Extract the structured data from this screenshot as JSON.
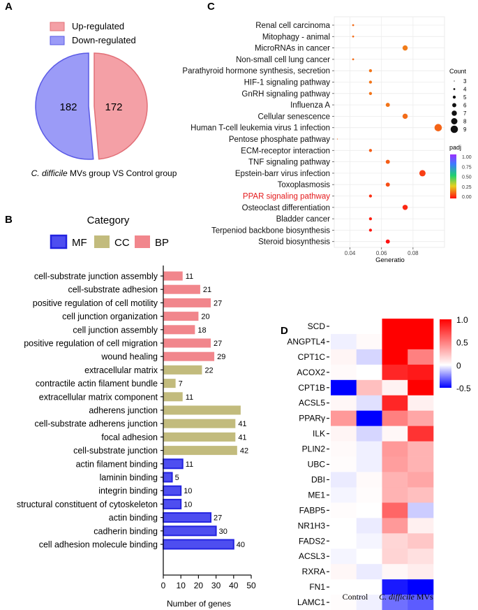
{
  "panel_labels": {
    "a": "A",
    "b": "B",
    "c": "C",
    "d": "D"
  },
  "colors": {
    "up": "#f4a0a6",
    "up_stroke": "#e26f77",
    "down": "#9b9bf7",
    "down_stroke": "#5a5ae6",
    "mf": "#4e4ef0",
    "cc": "#c2bb7d",
    "bp": "#f1868c"
  },
  "chart_data": [
    {
      "type": "pie",
      "panel": "A",
      "legend": [
        "Up-regulated",
        "Down-regulated"
      ],
      "slices": [
        {
          "label": "Up-regulated",
          "value": 172
        },
        {
          "label": "Down-regulated",
          "value": 182
        }
      ],
      "caption_italic": "C. difficile",
      "caption_rest": " MVs group VS Control group"
    },
    {
      "type": "bar",
      "orientation": "horizontal",
      "panel": "B",
      "legend_title": "Category",
      "legend": [
        "MF",
        "CC",
        "BP"
      ],
      "xlabel": "Number of genes",
      "xlim": [
        0,
        50
      ],
      "xticks": [
        "0",
        "10",
        "20",
        "30",
        "40",
        "50"
      ],
      "categories": [
        {
          "term": "cell-substrate junction assembly",
          "value": 11,
          "category": "BP",
          "label": "11"
        },
        {
          "term": "cell-substrate adhesion",
          "value": 21,
          "category": "BP",
          "label": "21"
        },
        {
          "term": "positive regulation of cell motility",
          "value": 27,
          "category": "BP",
          "label": "27"
        },
        {
          "term": "cell junction organization",
          "value": 20,
          "category": "BP",
          "label": "20"
        },
        {
          "term": "cell junction assembly",
          "value": 18,
          "category": "BP",
          "label": "18"
        },
        {
          "term": "positive regulation of cell migration",
          "value": 27,
          "category": "BP",
          "label": "27"
        },
        {
          "term": "wound healing",
          "value": 29,
          "category": "BP",
          "label": "29"
        },
        {
          "term": "extracellular matrix",
          "value": 22,
          "category": "CC",
          "label": "22"
        },
        {
          "term": "contractile actin filament bundle",
          "value": 7,
          "category": "CC",
          "label": "7"
        },
        {
          "term": "extracellular matrix component",
          "value": 11,
          "category": "CC",
          "label": "11"
        },
        {
          "term": "adherens junction",
          "value": 44,
          "category": "CC",
          "label": ""
        },
        {
          "term": "cell-substrate adherens junction",
          "value": 41,
          "category": "CC",
          "label": "41"
        },
        {
          "term": "focal adhesion",
          "value": 41,
          "category": "CC",
          "label": "41"
        },
        {
          "term": "cell-substrate junction",
          "value": 42,
          "category": "CC",
          "label": "42"
        },
        {
          "term": "actin filament binding",
          "value": 11,
          "category": "MF",
          "label": "11"
        },
        {
          "term": "laminin binding",
          "value": 5,
          "category": "MF",
          "label": "5"
        },
        {
          "term": "integrin binding",
          "value": 10,
          "category": "MF",
          "label": "10"
        },
        {
          "term": "structural constituent of cytoskeleton",
          "value": 10,
          "category": "MF",
          "label": "10"
        },
        {
          "term": "actin binding",
          "value": 27,
          "category": "MF",
          "label": "27"
        },
        {
          "term": "cadherin binding",
          "value": 30,
          "category": "MF",
          "label": "30"
        },
        {
          "term": "cell adhesion molecule binding",
          "value": 40,
          "category": "MF",
          "label": "40"
        }
      ]
    },
    {
      "type": "scatter",
      "panel": "C",
      "xlabel": "Generatio",
      "xlim": [
        0.03,
        0.1
      ],
      "xticks": [
        "0.04",
        "0.06",
        "0.08"
      ],
      "xtick_values": [
        0.04,
        0.06,
        0.08
      ],
      "size_legend_title": "Count",
      "size_legend": [
        "3",
        "4",
        "5",
        "6",
        "7",
        "8",
        "9"
      ],
      "color_legend_title": "padj",
      "color_ticks": [
        "1.00",
        "0.75",
        "0.50",
        "0.25",
        "0.00"
      ],
      "points": [
        {
          "term": "Renal cell carcinoma",
          "x": 0.042,
          "count": 4,
          "padj": 0.12,
          "highlight": false
        },
        {
          "term": "Mitophagy - animal",
          "x": 0.042,
          "count": 4,
          "padj": 0.12,
          "highlight": false
        },
        {
          "term": "MicroRNAs in cancer",
          "x": 0.075,
          "count": 7,
          "padj": 0.14,
          "highlight": false
        },
        {
          "term": "Non-small cell lung cancer",
          "x": 0.042,
          "count": 4,
          "padj": 0.12,
          "highlight": false
        },
        {
          "term": "Parathyroid hormone synthesis, secretion",
          "x": 0.053,
          "count": 5,
          "padj": 0.13,
          "highlight": false
        },
        {
          "term": "HIF-1 signaling pathway",
          "x": 0.053,
          "count": 5,
          "padj": 0.13,
          "highlight": false
        },
        {
          "term": "GnRH signaling pathway",
          "x": 0.053,
          "count": 5,
          "padj": 0.13,
          "highlight": false
        },
        {
          "term": "Influenza A",
          "x": 0.064,
          "count": 6,
          "padj": 0.13,
          "highlight": false
        },
        {
          "term": "Cellular senescence",
          "x": 0.075,
          "count": 7,
          "padj": 0.12,
          "highlight": false
        },
        {
          "term": "Human T-cell leukemia virus 1 infection",
          "x": 0.096,
          "count": 9,
          "padj": 0.11,
          "highlight": false
        },
        {
          "term": "Pentose phosphate pathway",
          "x": 0.032,
          "count": 3,
          "padj": 0.12,
          "highlight": false
        },
        {
          "term": "ECM-receptor interaction",
          "x": 0.053,
          "count": 5,
          "padj": 0.1,
          "highlight": false
        },
        {
          "term": "TNF signaling pathway",
          "x": 0.064,
          "count": 6,
          "padj": 0.1,
          "highlight": false
        },
        {
          "term": "Epstein-barr virus infection",
          "x": 0.086,
          "count": 8,
          "padj": 0.06,
          "highlight": false
        },
        {
          "term": "Toxoplasmosis",
          "x": 0.064,
          "count": 6,
          "padj": 0.08,
          "highlight": false
        },
        {
          "term": "PPAR signaling pathway",
          "x": 0.053,
          "count": 5,
          "padj": 0.04,
          "highlight": true
        },
        {
          "term": "Osteoclast differentiation",
          "x": 0.075,
          "count": 7,
          "padj": 0.03,
          "highlight": false
        },
        {
          "term": "Bladder cancer",
          "x": 0.053,
          "count": 5,
          "padj": 0.02,
          "highlight": false
        },
        {
          "term": "Terpeniod backbone biosynthesis",
          "x": 0.053,
          "count": 5,
          "padj": 0.01,
          "highlight": false
        },
        {
          "term": "Steroid biosynthesis",
          "x": 0.064,
          "count": 6,
          "padj": 0.0,
          "highlight": false
        }
      ]
    },
    {
      "type": "heatmap",
      "panel": "D",
      "columns": 4,
      "genes": [
        "SCD",
        "ANGPTL4",
        "CPT1C",
        "ACOX2",
        "CPT1B",
        "ACSL5",
        "PPARγ",
        "ILK",
        "PLIN2",
        "UBC",
        "DBI",
        "ME1",
        "FABP5",
        "NR1H3",
        "FADS2",
        "ACSL3",
        "RXRA",
        "FN1",
        "LAMC1"
      ],
      "values": [
        [
          0.0,
          0.0,
          1.0,
          1.0
        ],
        [
          -0.03,
          0.02,
          1.0,
          1.0
        ],
        [
          0.04,
          -0.08,
          1.0,
          0.5
        ],
        [
          0.02,
          0.0,
          0.85,
          0.9
        ],
        [
          -0.5,
          0.25,
          0.05,
          1.0
        ],
        [
          0.03,
          -0.06,
          0.85,
          0.06
        ],
        [
          0.4,
          -0.5,
          0.5,
          0.35
        ],
        [
          0.04,
          -0.08,
          0.03,
          0.8
        ],
        [
          0.02,
          -0.03,
          0.4,
          0.3
        ],
        [
          0.01,
          -0.03,
          0.38,
          0.3
        ],
        [
          -0.04,
          0.02,
          0.3,
          0.35
        ],
        [
          -0.02,
          0.01,
          0.3,
          0.25
        ],
        [
          0.01,
          0.0,
          0.6,
          -0.1
        ],
        [
          0.0,
          -0.04,
          0.4,
          0.06
        ],
        [
          0.0,
          -0.02,
          0.16,
          0.22
        ],
        [
          -0.02,
          0.0,
          0.17,
          0.12
        ],
        [
          0.03,
          -0.04,
          0.03,
          0.07
        ],
        [
          0.0,
          0.0,
          -0.45,
          -0.5
        ],
        [
          0.01,
          -0.03,
          -0.28,
          -0.32
        ]
      ],
      "group_labels": [
        {
          "italic": "",
          "rest": "Control"
        },
        {
          "italic": "C. difficile",
          "rest": " MVs"
        }
      ],
      "color_ticks": [
        "1.0",
        "0.5",
        "0",
        "-0.5"
      ],
      "color_tick_values": [
        1.0,
        0.5,
        0.0,
        -0.5
      ],
      "vmin": -0.5,
      "vmax": 1.0
    }
  ]
}
